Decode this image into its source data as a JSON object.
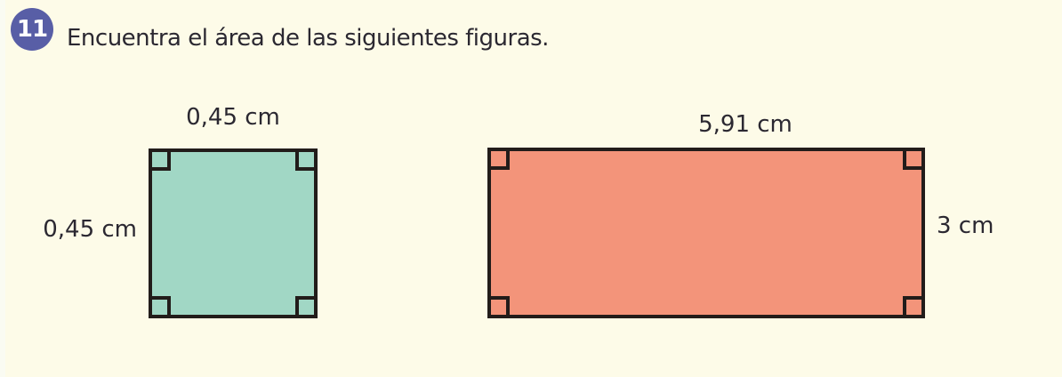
{
  "exercise": {
    "number": "11",
    "title": "Encuentra el área de las siguientes figuras."
  },
  "colors": {
    "page_background": "#FDFBE8",
    "badge": "#585EA6",
    "outline": "#221C1A",
    "text": "#2B2831"
  },
  "figures": [
    {
      "name": "square",
      "fill": "#A1D7C5",
      "top_label": "0,45 cm",
      "side_label": "0,45 cm",
      "side_label_position": "left"
    },
    {
      "name": "rectangle",
      "fill": "#F3947A",
      "top_label": "5,91 cm",
      "side_label": "3 cm",
      "side_label_position": "right"
    }
  ]
}
